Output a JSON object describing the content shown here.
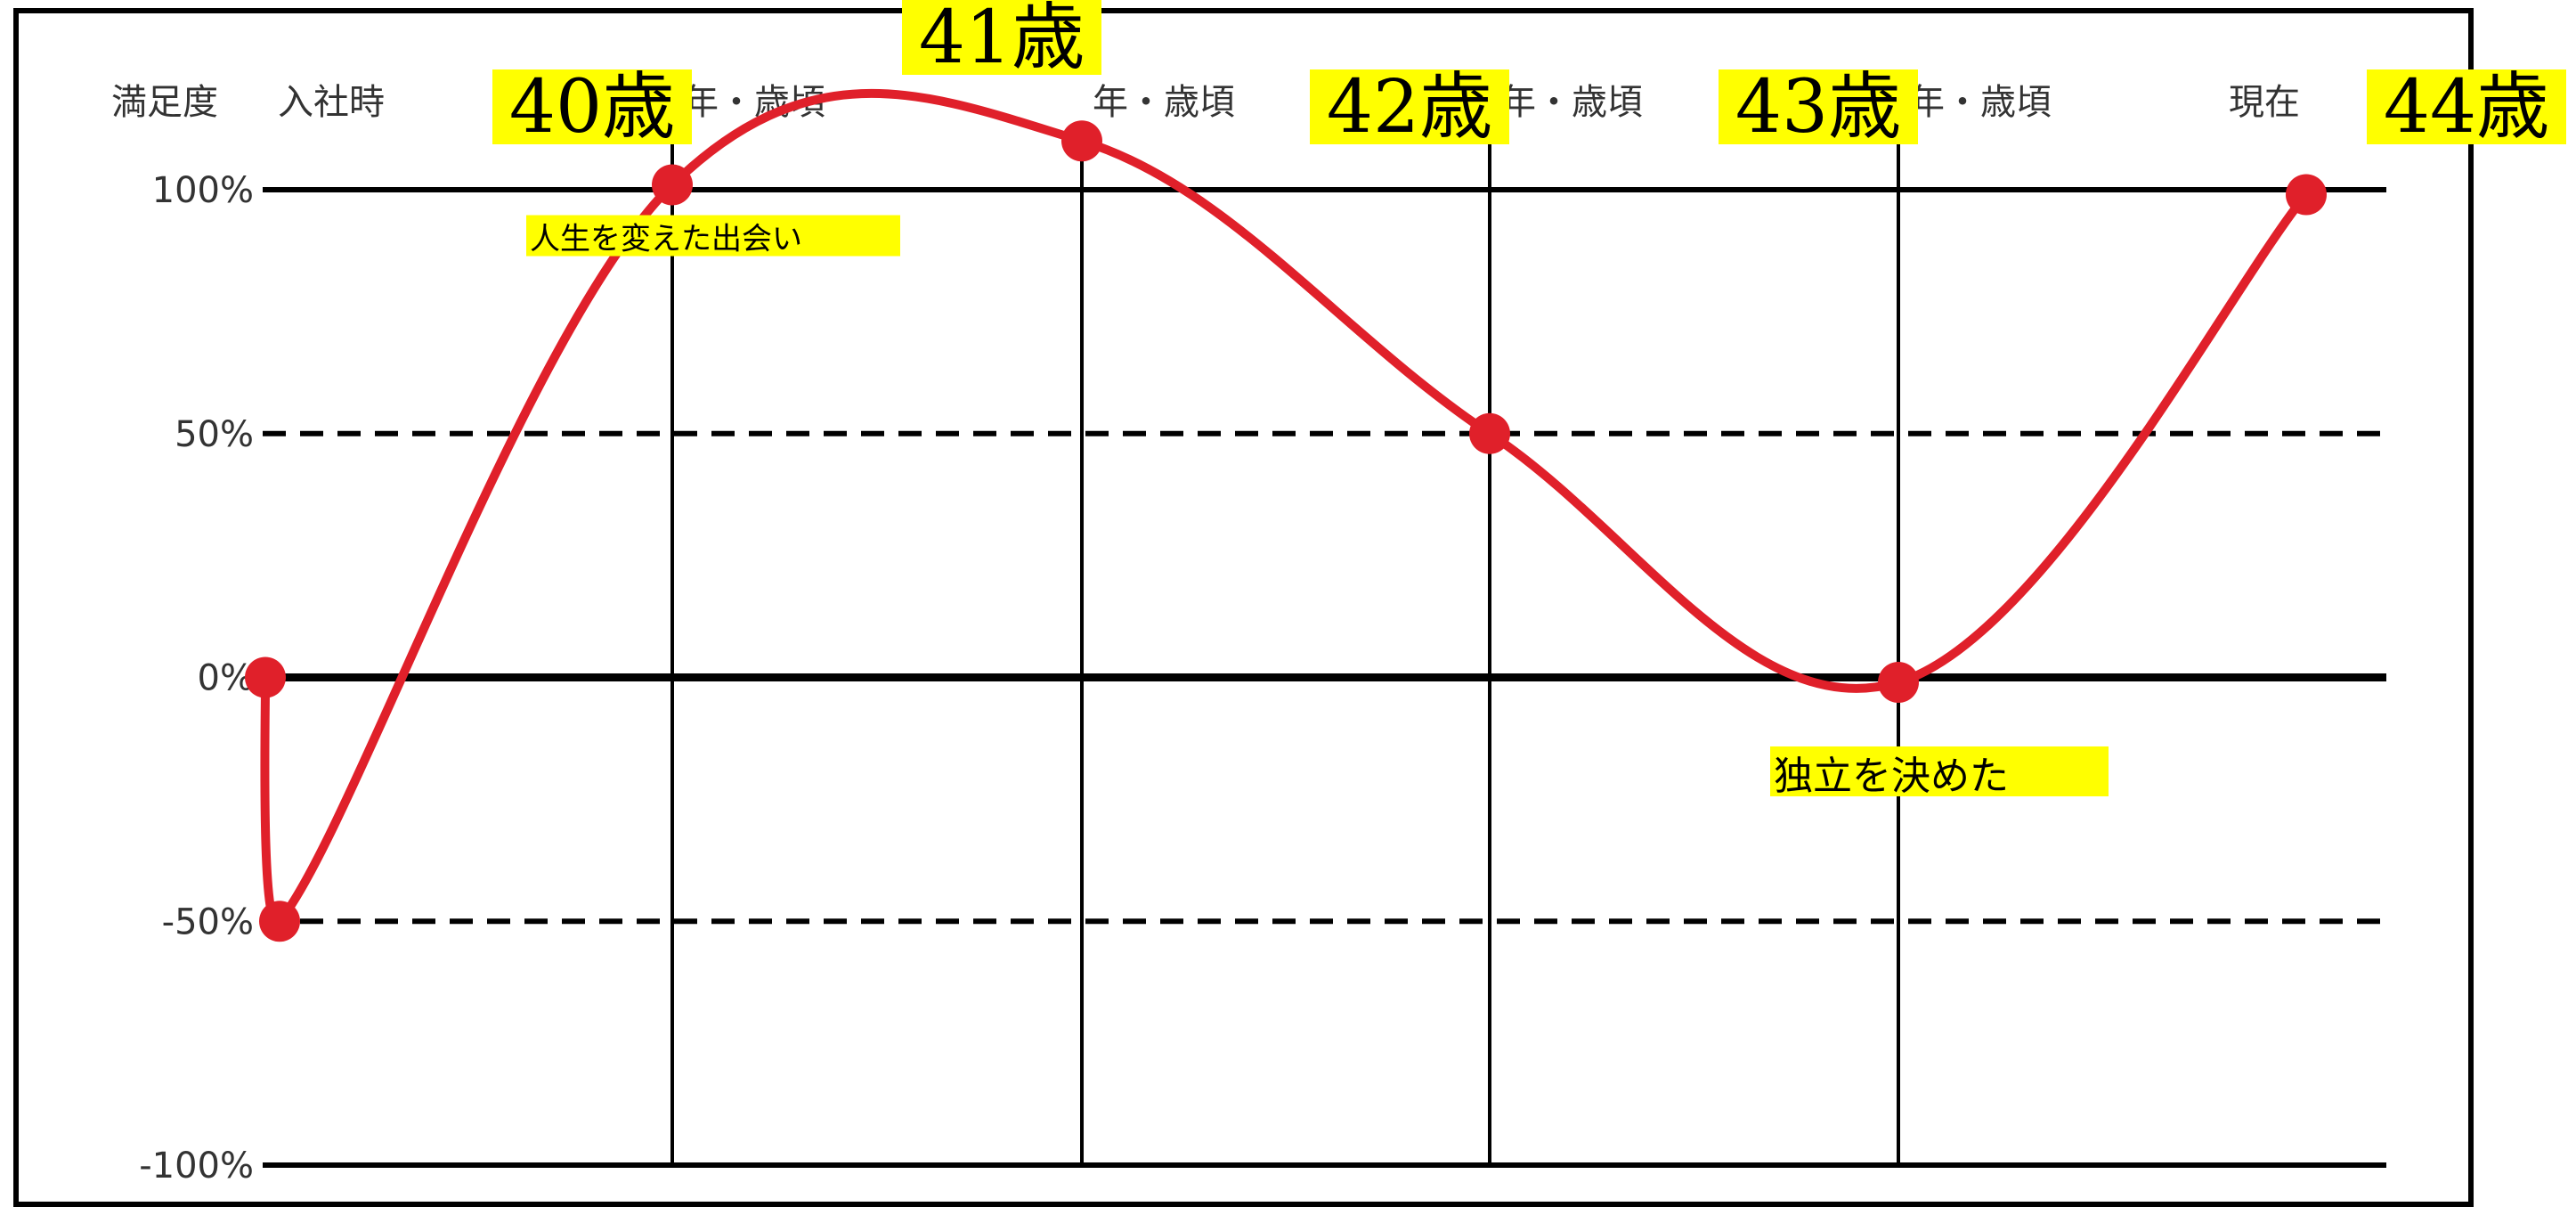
{
  "colors": {
    "background": "#ffffff",
    "frame": "#000000",
    "line": "#e0202a",
    "highlight": "#ffff00",
    "grid": "#000000"
  },
  "chart_data": {
    "type": "line",
    "ylabel": "満足度",
    "ylim": [
      -100,
      100
    ],
    "y_ticks": [
      {
        "value": 100,
        "label": "100%",
        "style": "solid"
      },
      {
        "value": 50,
        "label": "50%",
        "style": "dashed"
      },
      {
        "value": 0,
        "label": "0%",
        "style": "solid"
      },
      {
        "value": -50,
        "label": "-50%",
        "style": "dashed"
      },
      {
        "value": -100,
        "label": "-100%",
        "style": "solid"
      }
    ],
    "periods": [
      {
        "id": "start",
        "label": "入社時",
        "age": ""
      },
      {
        "id": "p1",
        "label": "年・歳頃",
        "age": "40歳"
      },
      {
        "id": "p2",
        "label": "年・歳頃",
        "age": "41歳"
      },
      {
        "id": "p3",
        "label": "年・歳頃",
        "age": "42歳"
      },
      {
        "id": "p4",
        "label": "年・歳頃",
        "age": "43歳"
      },
      {
        "id": "now",
        "label": "現在",
        "age": "44歳"
      }
    ],
    "series": [
      {
        "points": [
          {
            "x": "入社時",
            "y": 0
          },
          {
            "x": "入社時",
            "y": -50
          },
          {
            "x": "40歳",
            "y": 101
          },
          {
            "x": "41歳",
            "y": 110
          },
          {
            "x": "42歳",
            "y": 50
          },
          {
            "x": "43歳",
            "y": -1
          },
          {
            "x": "44歳",
            "y": 99
          }
        ]
      }
    ],
    "annotations": [
      {
        "text": "人生を変えた出会い",
        "at": "40歳",
        "y": 101
      },
      {
        "text": "独立を決めた",
        "at": "43歳",
        "y": -1
      }
    ],
    "grid": true,
    "legend": "none"
  }
}
